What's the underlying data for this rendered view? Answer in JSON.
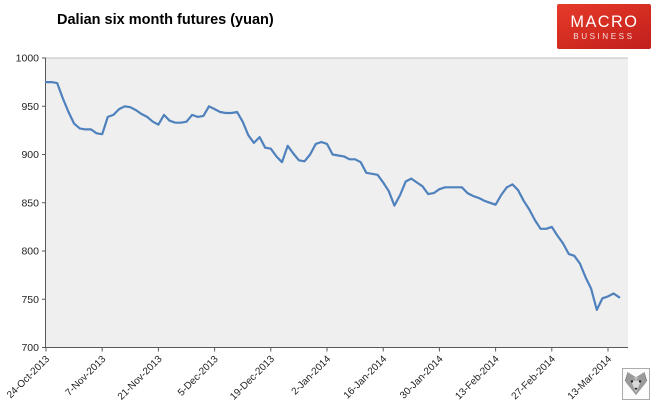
{
  "header": {
    "title": "Dalian six month futures (yuan)",
    "logo": {
      "line1": "MACRO",
      "line2": "BUSINESS",
      "bg_color": "#d22b20",
      "text_color": "#ffffff"
    }
  },
  "footer": {
    "watermark_icon": "wolf-head-logo"
  },
  "chart_data": {
    "type": "line",
    "title": "Dalian six month futures (yuan)",
    "ylabel": "",
    "xlabel": "",
    "ylim": [
      700,
      1000
    ],
    "y_ticks": [
      1000,
      950,
      900,
      850,
      800,
      750,
      700
    ],
    "x_tick_labels": [
      "24-Oct-2013",
      "7-Nov-2013",
      "21-Nov-2013",
      "5-Dec-2013",
      "19-Dec-2013",
      "2-Jan-2014",
      "16-Jan-2014",
      "30-Jan-2014",
      "13-Feb-2014",
      "27-Feb-2014",
      "13-Mar-2014"
    ],
    "x_tick_interval_points": 10,
    "grid": "top-border-only",
    "legend": "none",
    "line_color": "#4f81bd",
    "plot_bg": "#efefef",
    "axis_color": "#595959",
    "gridline_color": "#bfbfbf",
    "tick_label_color": "#1f1f1f",
    "values": [
      975,
      975,
      974,
      958,
      944,
      932,
      927,
      926,
      926,
      922,
      921,
      939,
      941,
      947,
      950,
      949,
      946,
      942,
      939,
      934,
      931,
      941,
      935,
      933,
      933,
      934,
      941,
      939,
      940,
      950,
      947,
      944,
      943,
      943,
      944,
      934,
      920,
      912,
      918,
      907,
      906,
      898,
      892,
      909,
      901,
      894,
      893,
      900,
      911,
      913,
      911,
      900,
      899,
      898,
      895,
      895,
      892,
      881,
      880,
      879,
      871,
      862,
      847,
      858,
      872,
      875,
      871,
      867,
      859,
      860,
      864,
      866,
      866,
      866,
      866,
      860,
      857,
      855,
      852,
      850,
      848,
      858,
      866,
      869,
      863,
      852,
      843,
      832,
      823,
      823,
      825,
      816,
      808,
      797,
      795,
      787,
      773,
      761,
      739,
      751,
      753,
      756,
      752
    ]
  }
}
